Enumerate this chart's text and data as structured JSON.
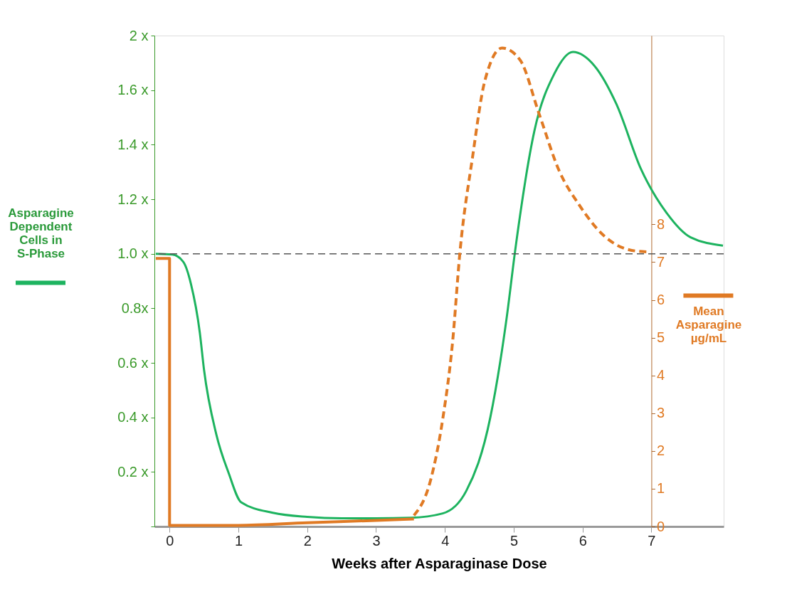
{
  "chart_data": {
    "type": "line",
    "xlabel": "Weeks after Asparaginase Dose",
    "ylabel": "Asparagine Dependent Cells in S-Phase",
    "y2label": "Mean Asparagine µg/mL",
    "xlim": [
      -0.22,
      8.05
    ],
    "xticks": [
      0,
      1,
      2,
      3,
      4,
      5,
      6,
      7
    ],
    "ylim": [
      0,
      1.8
    ],
    "yticks": [
      {
        "value": 0,
        "label": null
      },
      {
        "value": 0.2,
        "label": "0.2 x"
      },
      {
        "value": 0.4,
        "label": "0.4 x"
      },
      {
        "value": 0.6,
        "label": "0.6 x"
      },
      {
        "value": 0.8,
        "label": "0.8x"
      },
      {
        "value": 1.0,
        "label": "1.0 x"
      },
      {
        "value": 1.2,
        "label": "1.2 x"
      },
      {
        "value": 1.4,
        "label": "1.4 x"
      },
      {
        "value": 1.6,
        "label": "1.6 x"
      },
      {
        "value": 1.8,
        "label": "2 x"
      }
    ],
    "y2lim": [
      0,
      13
    ],
    "y2ticks": [
      0,
      1,
      2,
      3,
      4,
      5,
      6,
      7,
      8
    ],
    "grid": false,
    "ref_lines": [
      {
        "axis": "y",
        "value": 1.0,
        "label": null,
        "color": "#555555",
        "line_style": "dashed"
      }
    ],
    "series": [
      {
        "color": "#1db35f",
        "line_style": "solid",
        "x": [
          -0.2,
          0.04,
          0.2,
          0.31,
          0.44,
          0.5,
          0.68,
          0.86,
          1.04,
          1.5,
          2,
          2.5,
          3,
          3.5,
          3.97,
          4.31,
          4.66,
          4.9,
          5.02,
          5.3,
          5.59,
          5.86,
          6.17,
          6.49,
          6.85,
          7.22,
          7.57,
          8.04
        ],
        "values": [
          1.0,
          0.997,
          0.97,
          0.89,
          0.71,
          0.576,
          0.337,
          0.195,
          0.089,
          0.05,
          0.035,
          0.03,
          0.03,
          0.032,
          0.048,
          0.13,
          0.4,
          0.77,
          1.01,
          1.45,
          1.66,
          1.74,
          1.69,
          1.55,
          1.31,
          1.15,
          1.06,
          1.03
        ]
      },
      {
        "color": "#e07a24",
        "axis": "y2",
        "line_style": "solid",
        "x": [
          -0.2,
          0.0,
          0.0,
          1,
          2,
          3,
          3.55
        ],
        "values": [
          7.1,
          7.1,
          0.03,
          0.03,
          0.1,
          0.16,
          0.2
        ]
      },
      {
        "color": "#e07a24",
        "axis": "y2",
        "line_style": "dashed",
        "x": [
          3.55,
          3.79,
          3.97,
          4.11,
          4.22,
          4.4,
          4.58,
          4.83,
          5.09,
          5.37,
          5.66,
          5.95,
          6.31,
          6.67,
          6.94
        ],
        "values": [
          0.29,
          1.21,
          2.86,
          4.85,
          7.29,
          9.76,
          11.8,
          12.67,
          12.36,
          10.92,
          9.42,
          8.52,
          7.7,
          7.33,
          7.27
        ]
      }
    ]
  }
}
